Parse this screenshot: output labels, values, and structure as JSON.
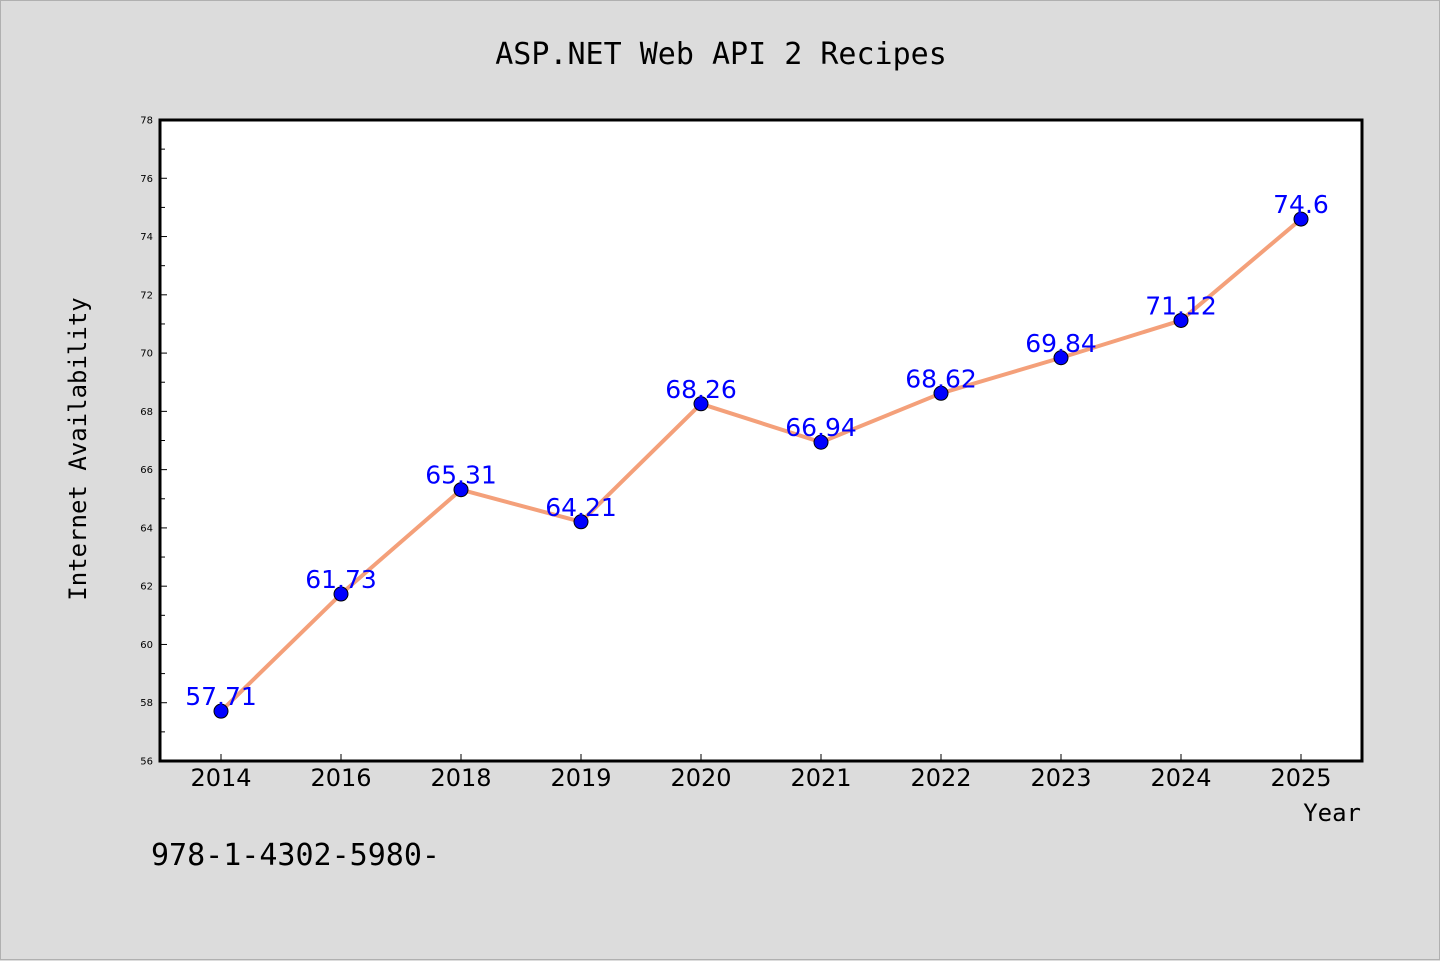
{
  "chart_data": {
    "type": "line",
    "title": "ASP.NET Web API 2 Recipes",
    "xlabel": "Year",
    "ylabel": "Internet Availability",
    "categories": [
      "2014",
      "2016",
      "2018",
      "2019",
      "2020",
      "2021",
      "2022",
      "2023",
      "2024",
      "2025"
    ],
    "values": [
      57.71,
      61.73,
      65.31,
      64.21,
      68.26,
      66.94,
      68.62,
      69.84,
      71.12,
      74.6
    ],
    "data_labels": [
      "57.71",
      "61.73",
      "65.31",
      "64.21",
      "68.26",
      "66.94",
      "68.62",
      "69.84",
      "71.12",
      "74.6"
    ],
    "ylim": [
      56,
      78
    ],
    "yticks": [
      "56",
      "58",
      "60",
      "62",
      "64",
      "66",
      "68",
      "70",
      "72",
      "74",
      "76",
      "78"
    ],
    "grid": false,
    "line_color": "#f4a07a",
    "marker_color": "#0000ff",
    "label_color": "#0000ff",
    "footnote": "978-1-4302-5980-"
  }
}
